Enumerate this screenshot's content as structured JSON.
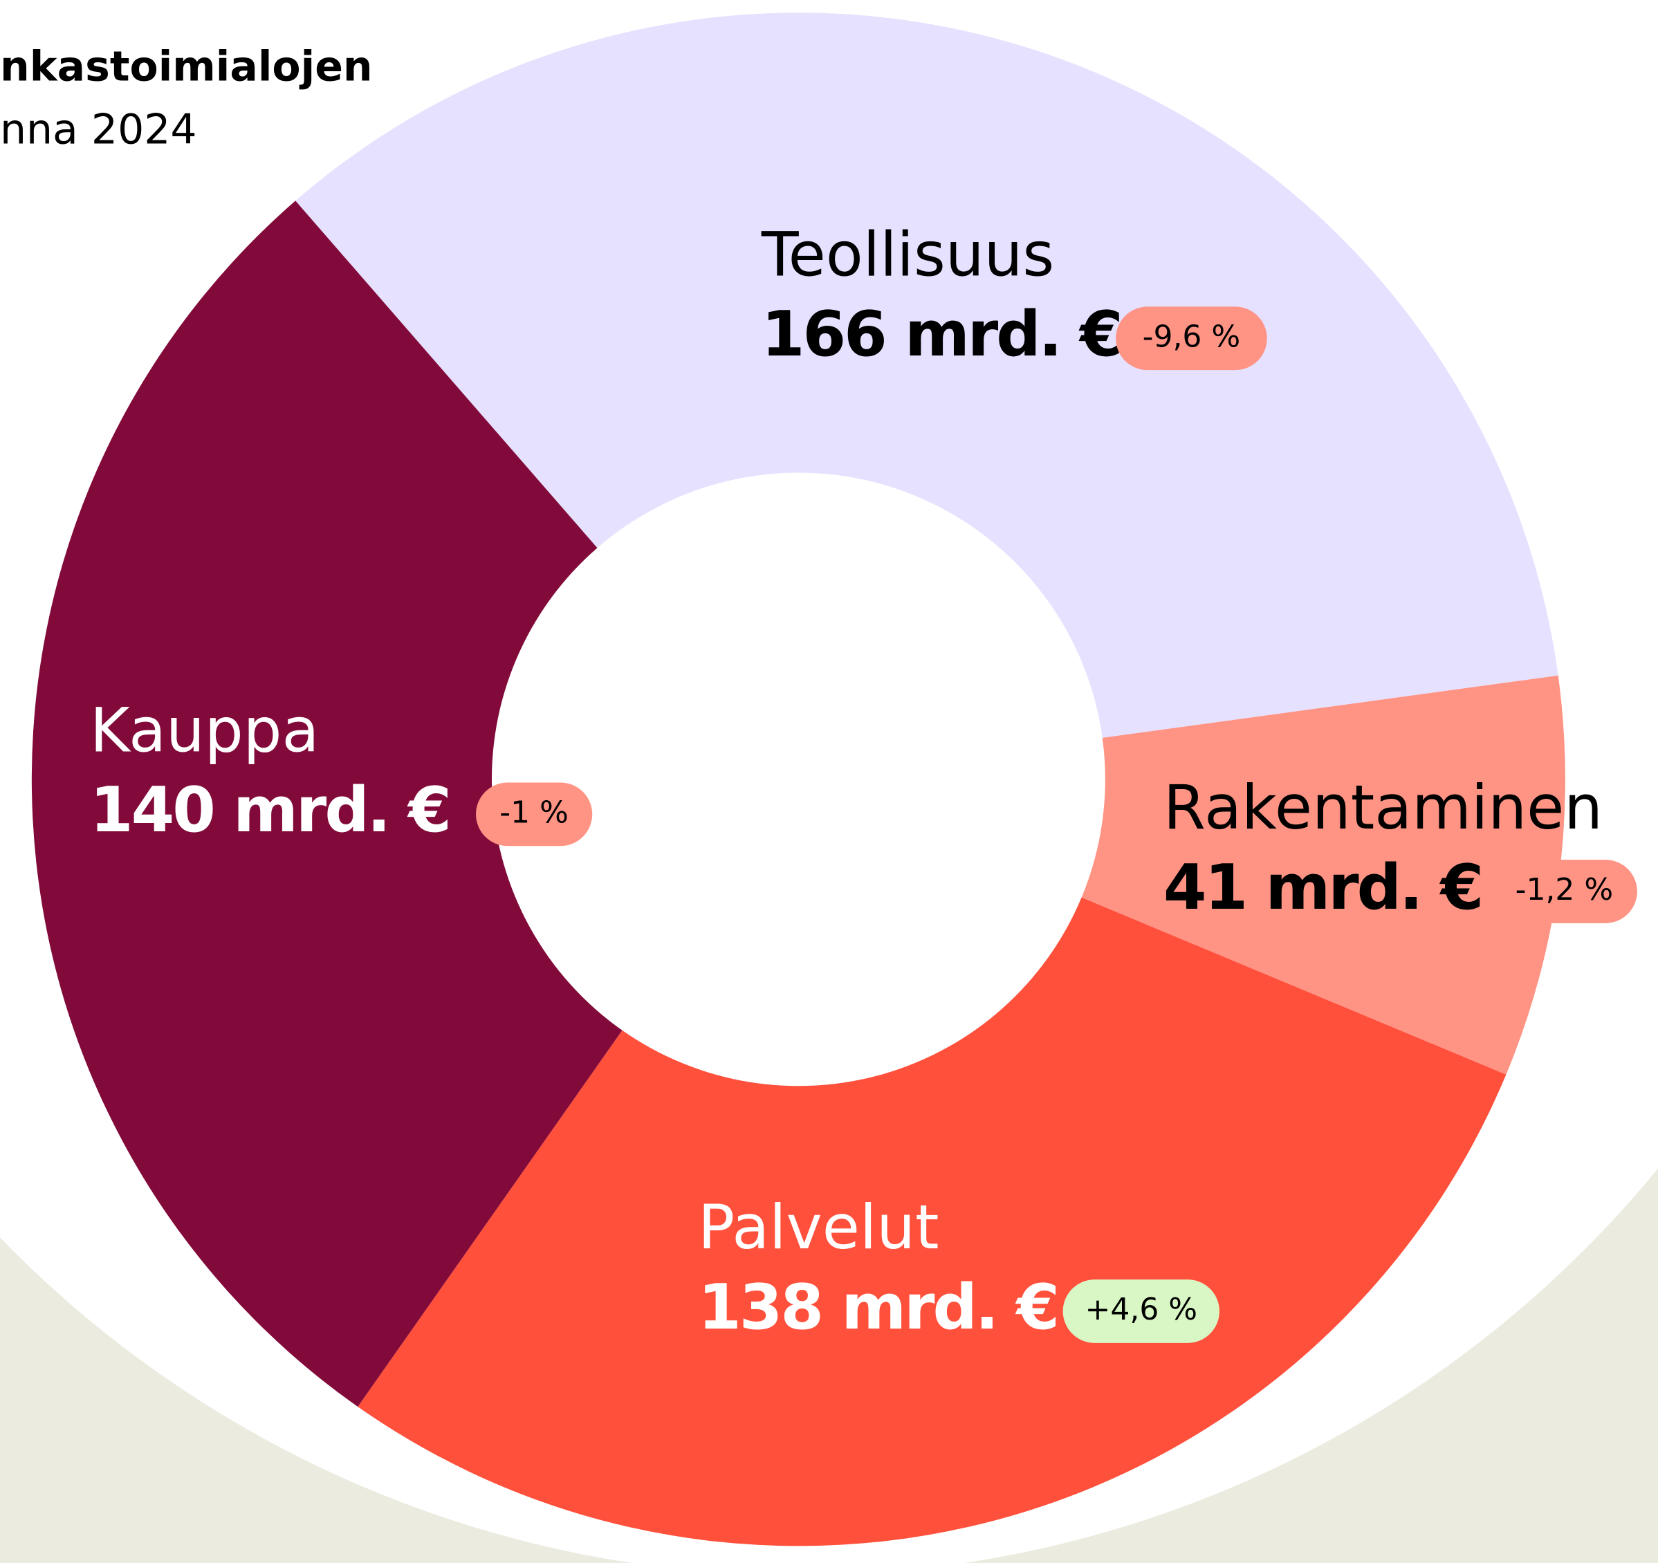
{
  "chart_data": {
    "type": "donut",
    "subtitle": [
      "nkastoimialojen",
      "nna 2024"
    ],
    "categories": [
      "Teollisuus",
      "Rakentaminen",
      "Palvelut",
      "Kauppa"
    ],
    "values": [
      166,
      41,
      138,
      140
    ],
    "value_labels": [
      "166 mrd. €",
      "41 mrd. €",
      "138 mrd. €",
      "140 mrd. €"
    ],
    "changes": [
      "-9,6 %",
      "-1,2 %",
      "+4,6 %",
      "-1 %"
    ],
    "colors": [
      "#e6e1ff",
      "#ff9485",
      "#ff503c",
      "#820a3a"
    ],
    "change_colors": [
      "#ff9485",
      "#ff9485",
      "#d9f7c4",
      "#ff9485"
    ]
  }
}
